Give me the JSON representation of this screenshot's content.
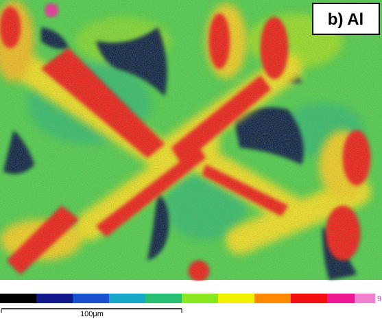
{
  "panel_label": "b) Al",
  "scale_bar": {
    "label": "100µm"
  },
  "color_scale": {
    "max_label": "9"
  }
}
